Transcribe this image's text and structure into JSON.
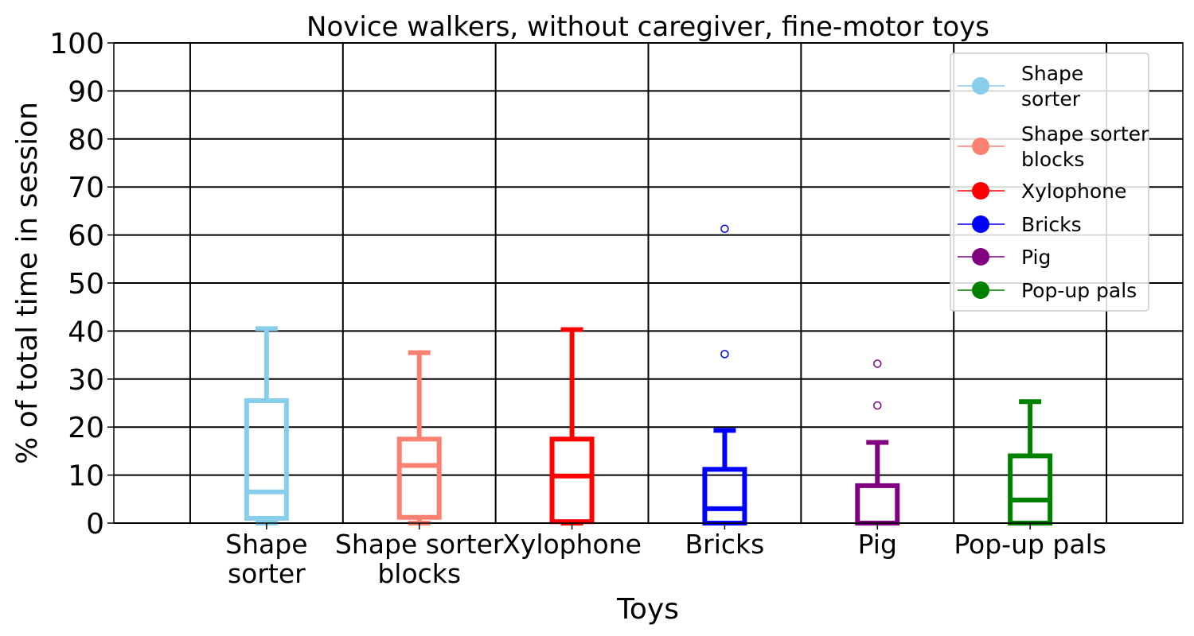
{
  "chart_data": {
    "type": "box",
    "title": "Novice walkers, without caregiver, fine-motor toys",
    "xlabel": "Toys",
    "ylabel": "% of total time in session",
    "ylim": [
      0,
      100
    ],
    "yticks": [
      0,
      10,
      20,
      30,
      40,
      50,
      60,
      70,
      80,
      90,
      100
    ],
    "grid": true,
    "legend_position": "top-right",
    "categories": [
      {
        "label": [
          "Shape",
          "sorter"
        ],
        "legend": [
          "Shape",
          "sorter"
        ],
        "color": "#87CEEB",
        "whisker_low": 0,
        "q1": 1,
        "median": 6.5,
        "q3": 25.5,
        "whisker_high": 40.5,
        "outliers": []
      },
      {
        "label": [
          "Shape sorter",
          "blocks"
        ],
        "legend": [
          "Shape sorter",
          "blocks"
        ],
        "color": "#FA8072",
        "whisker_low": 0,
        "q1": 1.2,
        "median": 12,
        "q3": 17.5,
        "whisker_high": 35.5,
        "outliers": []
      },
      {
        "label": [
          "Xylophone"
        ],
        "legend": [
          "Xylophone"
        ],
        "color": "#FF0000",
        "whisker_low": 0,
        "q1": 0.3,
        "median": 9.8,
        "q3": 17.5,
        "whisker_high": 40.3,
        "outliers": []
      },
      {
        "label": [
          "Bricks"
        ],
        "legend": [
          "Bricks"
        ],
        "color": "#0000FF",
        "whisker_low": 0,
        "q1": 0,
        "median": 3,
        "q3": 11.2,
        "whisker_high": 19.3,
        "outliers": [
          35.2,
          61.3
        ]
      },
      {
        "label": [
          "Pig"
        ],
        "legend": [
          "Pig"
        ],
        "color": "#800080",
        "whisker_low": 0,
        "q1": 0,
        "median": 0,
        "q3": 7.8,
        "whisker_high": 16.8,
        "outliers": [
          24.5,
          33.2
        ]
      },
      {
        "label": [
          "Pop-up pals"
        ],
        "legend": [
          "Pop-up pals"
        ],
        "color": "#008000",
        "whisker_low": 0,
        "q1": 0,
        "median": 4.8,
        "q3": 14,
        "whisker_high": 25.3,
        "outliers": []
      }
    ]
  }
}
